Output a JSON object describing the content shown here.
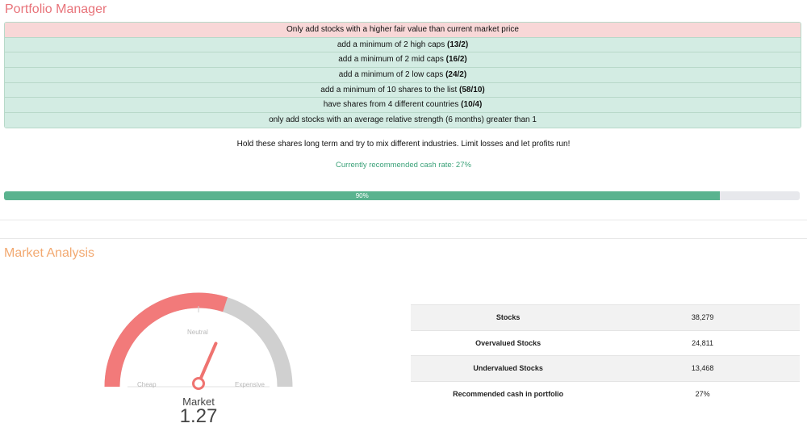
{
  "portfolio": {
    "title": "Portfolio Manager",
    "rules": [
      {
        "text": "Only add stocks with a higher fair value than current market price",
        "bold": "",
        "status": "warning"
      },
      {
        "text": "add a minimum of 2 high caps ",
        "bold": "(13/2)",
        "status": "ok"
      },
      {
        "text": "add a minimum of 2 mid caps ",
        "bold": "(16/2)",
        "status": "ok"
      },
      {
        "text": "add a minimum of 2 low caps ",
        "bold": "(24/2)",
        "status": "ok"
      },
      {
        "text": "add a minimum of 10 shares to the list ",
        "bold": "(58/10)",
        "status": "ok"
      },
      {
        "text": "have shares from 4 different countries ",
        "bold": "(10/4)",
        "status": "ok"
      },
      {
        "text": "only add stocks with an average relative strength (6 months) greater than 1",
        "bold": "",
        "status": "ok"
      }
    ],
    "hold_text": "Hold these shares long term and try to mix different industries. Limit losses and let profits run!",
    "cash_rate_text": "Currently recommended cash rate: 27%",
    "progress": {
      "value": 0.9,
      "label": "90%"
    }
  },
  "market": {
    "title": "Market Analysis",
    "gauge": {
      "neutral_label": "Neutral",
      "cheap_label": "Cheap",
      "expensive_label": "Expensive",
      "caption": "Market",
      "value": "1.27",
      "fill_fraction": 0.6,
      "colors": {
        "fill": "#f27a7a",
        "track": "#d0d0d0",
        "needle": "#ef7370"
      }
    },
    "stats": [
      {
        "label": "Stocks",
        "value": "38,279"
      },
      {
        "label": "Overvalued Stocks",
        "value": "24,811"
      },
      {
        "label": "Undervalued Stocks",
        "value": "13,468"
      },
      {
        "label": "Recommended cash in portfolio",
        "value": "27%"
      }
    ]
  }
}
